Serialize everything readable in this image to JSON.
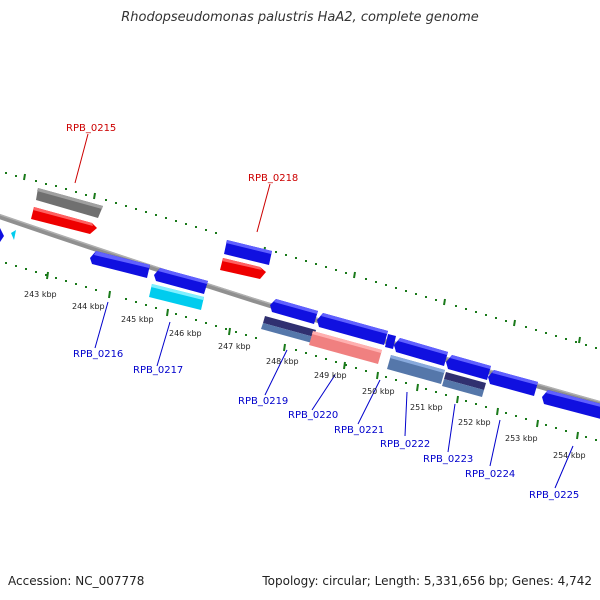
{
  "title": "Rhodopseudomonas palustris HaA2, complete genome",
  "footer": {
    "accession": "Accession: NC_007778",
    "summary": "Topology: circular; Length: 5,331,656 bp; Genes: 4,742"
  },
  "colors": {
    "backbone": "#808080",
    "tick": "#1a7a1a",
    "gene_label_forward": "#cc0000",
    "gene_label_reverse": "#0000cc",
    "cds_blue": "#1010e0",
    "cds_red": "#ee0000",
    "gene_gray": "#707070",
    "cyan": "#00ccee",
    "pink": "#f08080",
    "steel": "#5577aa",
    "dark_purple": "#303070"
  },
  "scale_labels": [
    "243 kbp",
    "244 kbp",
    "245 kbp",
    "246 kbp",
    "247 kbp",
    "248 kbp",
    "249 kbp",
    "250 kbp",
    "251 kbp",
    "252 kbp",
    "253 kbp",
    "254 kbp"
  ],
  "gene_labels": [
    {
      "text": "RPB_0215",
      "strand": "forward"
    },
    {
      "text": "RPB_0216",
      "strand": "reverse"
    },
    {
      "text": "RPB_0217",
      "strand": "reverse"
    },
    {
      "text": "RPB_0218",
      "strand": "forward"
    },
    {
      "text": "RPB_0219",
      "strand": "reverse"
    },
    {
      "text": "RPB_0220",
      "strand": "reverse"
    },
    {
      "text": "RPB_0221",
      "strand": "reverse"
    },
    {
      "text": "RPB_0222",
      "strand": "reverse"
    },
    {
      "text": "RPB_0223",
      "strand": "reverse"
    },
    {
      "text": "RPB_0224",
      "strand": "reverse"
    },
    {
      "text": "RPB_0225",
      "strand": "reverse"
    }
  ]
}
